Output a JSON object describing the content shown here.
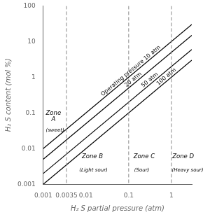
{
  "chart_data": {
    "type": "line",
    "xlabel": "H₂ S partial pressure (atm)",
    "ylabel": "H₂ S content (mol %)",
    "log": true,
    "grid": false,
    "x": [
      0.001,
      3.0
    ],
    "series": [
      {
        "values": [
          0.01,
          30
        ],
        "color": "black"
      },
      {
        "values": [
          0.005,
          15
        ],
        "color": "black"
      },
      {
        "values": [
          0.002,
          6
        ],
        "color": "black"
      },
      {
        "values": [
          0.001,
          3
        ],
        "color": "black"
      }
    ],
    "xlim": [
      0.001,
      3.0
    ],
    "ylim": [
      0.001,
      100
    ],
    "xticks": [
      0.001,
      0.0035,
      0.01,
      0.1,
      1
    ],
    "yticks": [
      0.001,
      0.01,
      0.1,
      1,
      10,
      100
    ],
    "vlines": {
      "values": [
        0.0035,
        0.1,
        1.0
      ],
      "color": "#888888",
      "line_style": "dashed"
    },
    "line_labels": [
      {
        "text": "Operating pressure 10 atm",
        "x": 0.025,
        "y": 0.25
      },
      {
        "text": "20 atm",
        "x": 0.09,
        "y": 0.45
      },
      {
        "text": "50 atm",
        "x": 0.22,
        "y": 0.44
      },
      {
        "text": "100 atm",
        "x": 0.5,
        "y": 0.5
      }
    ],
    "annotations": [
      {
        "text": "Zone\nA",
        "x": 0.00115,
        "y": 0.08
      },
      {
        "text": "(sweet)",
        "x": 0.00115,
        "y": 0.032
      },
      {
        "text": "Zone B",
        "x": 0.008,
        "y": 0.006
      },
      {
        "text": "(Light sour)",
        "x": 0.007,
        "y": 0.0025
      },
      {
        "text": "Zone C",
        "x": 0.13,
        "y": 0.006
      },
      {
        "text": "(Sour)",
        "x": 0.135,
        "y": 0.0025
      },
      {
        "text": "Zone D",
        "x": 1.05,
        "y": 0.006
      },
      {
        "text": "(Heavy sour)",
        "x": 1.02,
        "y": 0.0025
      }
    ]
  }
}
